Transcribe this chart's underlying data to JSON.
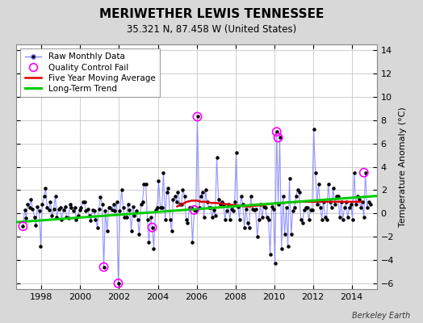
{
  "title": "MERIWETHER LEWIS TENNESSEE",
  "subtitle": "35.321 N, 87.458 W (United States)",
  "ylabel": "Temperature Anomaly (°C)",
  "credit": "Berkeley Earth",
  "xlim": [
    1996.7,
    2015.3
  ],
  "ylim": [
    -6.5,
    14.5
  ],
  "yticks": [
    -6,
    -4,
    -2,
    0,
    2,
    4,
    6,
    8,
    10,
    12,
    14
  ],
  "xticks": [
    1998,
    2000,
    2002,
    2004,
    2006,
    2008,
    2010,
    2012,
    2014
  ],
  "raw_times": [
    1997.04,
    1997.13,
    1997.21,
    1997.29,
    1997.38,
    1997.46,
    1997.54,
    1997.63,
    1997.71,
    1997.79,
    1997.88,
    1997.96,
    1998.04,
    1998.13,
    1998.21,
    1998.29,
    1998.38,
    1998.46,
    1998.54,
    1998.63,
    1998.71,
    1998.79,
    1998.88,
    1998.96,
    1999.04,
    1999.13,
    1999.21,
    1999.29,
    1999.38,
    1999.46,
    1999.54,
    1999.63,
    1999.71,
    1999.79,
    1999.88,
    1999.96,
    2000.04,
    2000.13,
    2000.21,
    2000.29,
    2000.38,
    2000.46,
    2000.54,
    2000.63,
    2000.71,
    2000.79,
    2000.88,
    2000.96,
    2001.04,
    2001.13,
    2001.21,
    2001.29,
    2001.38,
    2001.46,
    2001.54,
    2001.63,
    2001.71,
    2001.79,
    2001.88,
    2001.96,
    2002.04,
    2002.13,
    2002.21,
    2002.29,
    2002.38,
    2002.46,
    2002.54,
    2002.63,
    2002.71,
    2002.79,
    2002.88,
    2002.96,
    2003.04,
    2003.13,
    2003.21,
    2003.29,
    2003.38,
    2003.46,
    2003.54,
    2003.63,
    2003.71,
    2003.79,
    2003.88,
    2003.96,
    2004.04,
    2004.13,
    2004.21,
    2004.29,
    2004.38,
    2004.46,
    2004.54,
    2004.63,
    2004.71,
    2004.79,
    2004.88,
    2004.96,
    2005.04,
    2005.13,
    2005.21,
    2005.29,
    2005.38,
    2005.46,
    2005.54,
    2005.63,
    2005.71,
    2005.79,
    2005.88,
    2005.96,
    2006.04,
    2006.13,
    2006.21,
    2006.29,
    2006.38,
    2006.46,
    2006.54,
    2006.63,
    2006.71,
    2006.79,
    2006.88,
    2006.96,
    2007.04,
    2007.13,
    2007.21,
    2007.29,
    2007.38,
    2007.46,
    2007.54,
    2007.63,
    2007.71,
    2007.79,
    2007.88,
    2007.96,
    2008.04,
    2008.13,
    2008.21,
    2008.29,
    2008.38,
    2008.46,
    2008.54,
    2008.63,
    2008.71,
    2008.79,
    2008.88,
    2008.96,
    2009.04,
    2009.13,
    2009.21,
    2009.29,
    2009.38,
    2009.46,
    2009.54,
    2009.63,
    2009.71,
    2009.79,
    2009.88,
    2009.96,
    2010.04,
    2010.13,
    2010.21,
    2010.29,
    2010.38,
    2010.46,
    2010.54,
    2010.63,
    2010.71,
    2010.79,
    2010.88,
    2010.96,
    2011.04,
    2011.13,
    2011.21,
    2011.29,
    2011.38,
    2011.46,
    2011.54,
    2011.63,
    2011.71,
    2011.79,
    2011.88,
    2011.96,
    2012.04,
    2012.13,
    2012.21,
    2012.29,
    2012.38,
    2012.46,
    2012.54,
    2012.63,
    2012.71,
    2012.79,
    2012.88,
    2012.96,
    2013.04,
    2013.13,
    2013.21,
    2013.29,
    2013.38,
    2013.46,
    2013.54,
    2013.63,
    2013.71,
    2013.79,
    2013.88,
    2013.96,
    2014.04,
    2014.13,
    2014.21,
    2014.29,
    2014.38,
    2014.46,
    2014.54,
    2014.63,
    2014.71,
    2014.79,
    2014.88,
    2014.96
  ],
  "raw_values": [
    -1.1,
    0.3,
    -0.4,
    0.8,
    0.5,
    1.2,
    0.4,
    -0.3,
    -1.0,
    0.6,
    0.2,
    -2.8,
    0.8,
    1.5,
    2.2,
    0.5,
    0.3,
    1.0,
    -0.2,
    0.4,
    1.5,
    -0.3,
    0.4,
    0.5,
    -0.5,
    0.3,
    0.6,
    -0.3,
    -0.4,
    0.8,
    0.5,
    0.2,
    0.5,
    -0.5,
    -0.2,
    0.3,
    0.5,
    1.0,
    1.0,
    0.2,
    0.4,
    -0.2,
    -0.6,
    0.3,
    0.2,
    -0.5,
    -1.2,
    0.4,
    1.4,
    0.8,
    -4.6,
    0.2,
    -1.5,
    0.5,
    0.5,
    0.3,
    0.8,
    0.2,
    1.0,
    -6.0,
    0.2,
    2.0,
    0.5,
    -0.3,
    -0.3,
    0.8,
    0.3,
    -1.5,
    0.6,
    -0.2,
    0.2,
    -0.5,
    -1.8,
    0.8,
    1.0,
    2.5,
    2.5,
    -0.5,
    -2.5,
    -0.3,
    -1.2,
    -3.0,
    0.3,
    0.5,
    2.8,
    0.5,
    0.5,
    3.5,
    -0.5,
    1.8,
    2.2,
    -0.5,
    -1.5,
    1.2,
    1.5,
    1.0,
    1.8,
    0.8,
    0.8,
    2.0,
    1.5,
    -0.5,
    -0.8,
    0.5,
    0.5,
    -2.5,
    0.3,
    0.2,
    8.3,
    0.5,
    1.5,
    1.8,
    -0.3,
    2.0,
    1.0,
    0.5,
    0.5,
    -0.3,
    0.3,
    -0.2,
    4.8,
    1.2,
    0.8,
    1.0,
    0.8,
    -0.5,
    0.2,
    0.8,
    -0.5,
    0.4,
    0.2,
    1.0,
    5.2,
    0.6,
    -0.5,
    1.5,
    0.8,
    -1.2,
    0.4,
    -0.8,
    -1.2,
    1.5,
    0.4,
    0.3,
    0.4,
    -2.0,
    -0.5,
    0.8,
    -0.3,
    0.6,
    0.5,
    -0.3,
    -0.5,
    -3.5,
    0.6,
    0.4,
    -4.3,
    7.0,
    0.8,
    6.5,
    -3.0,
    1.5,
    -1.8,
    0.5,
    -2.8,
    3.0,
    -1.8,
    0.2,
    0.5,
    1.5,
    2.0,
    1.8,
    -0.5,
    -0.8,
    0.3,
    0.5,
    0.5,
    -0.5,
    0.3,
    0.3,
    7.2,
    3.5,
    0.8,
    2.5,
    0.5,
    -0.5,
    1.0,
    -0.3,
    -0.5,
    2.5,
    1.0,
    0.5,
    2.2,
    0.8,
    1.5,
    1.5,
    -0.3,
    1.0,
    -0.5,
    0.5,
    1.0,
    -0.3,
    0.5,
    0.8,
    -0.5,
    3.5,
    0.8,
    1.5,
    1.2,
    0.5,
    1.0,
    -0.3,
    3.5,
    0.5,
    1.0,
    0.8
  ],
  "qc_fail_times": [
    1997.04,
    2001.21,
    2001.96,
    2003.71,
    2005.88,
    2006.04,
    2010.13,
    2010.21,
    2014.63
  ],
  "qc_fail_values": [
    -1.1,
    -4.6,
    -6.0,
    -1.2,
    0.3,
    8.3,
    7.0,
    6.5,
    3.5
  ],
  "moving_avg_times": [
    2005.0,
    2005.25,
    2005.5,
    2005.75,
    2006.0,
    2006.25,
    2006.5,
    2006.75,
    2007.0,
    2007.25,
    2007.5,
    2007.75,
    2008.0,
    2008.25,
    2008.5,
    2008.75,
    2009.0,
    2009.25,
    2009.5,
    2009.75,
    2010.0,
    2010.25,
    2010.5,
    2010.75,
    2011.0,
    2011.25,
    2011.5,
    2011.75,
    2012.0,
    2012.25,
    2012.5,
    2012.75,
    2013.0,
    2013.25,
    2013.5,
    2013.75,
    2014.0,
    2014.25,
    2014.5
  ],
  "moving_avg_values": [
    0.6,
    0.8,
    1.0,
    1.1,
    1.1,
    1.0,
    1.0,
    0.9,
    0.9,
    0.85,
    0.8,
    0.75,
    0.7,
    0.65,
    0.6,
    0.6,
    0.65,
    0.7,
    0.75,
    0.8,
    0.85,
    0.9,
    0.9,
    0.95,
    0.95,
    1.0,
    1.0,
    1.0,
    1.0,
    1.0,
    1.0,
    1.0,
    1.0,
    1.0,
    1.0,
    1.0,
    1.0,
    1.0,
    1.0
  ],
  "trend_times": [
    1996.7,
    2015.3
  ],
  "trend_values": [
    -0.75,
    1.5
  ],
  "line_color": "#8888ff",
  "marker_color": "#000000",
  "qc_color": "#ff00ff",
  "moving_avg_color": "#dd0000",
  "trend_color": "#00cc00",
  "bg_color": "#d8d8d8",
  "plot_bg_color": "#ffffff",
  "grid_color": "#bbbbbb",
  "title_fontsize": 11,
  "subtitle_fontsize": 8.5,
  "tick_fontsize": 8,
  "legend_fontsize": 7.5,
  "credit_fontsize": 7
}
